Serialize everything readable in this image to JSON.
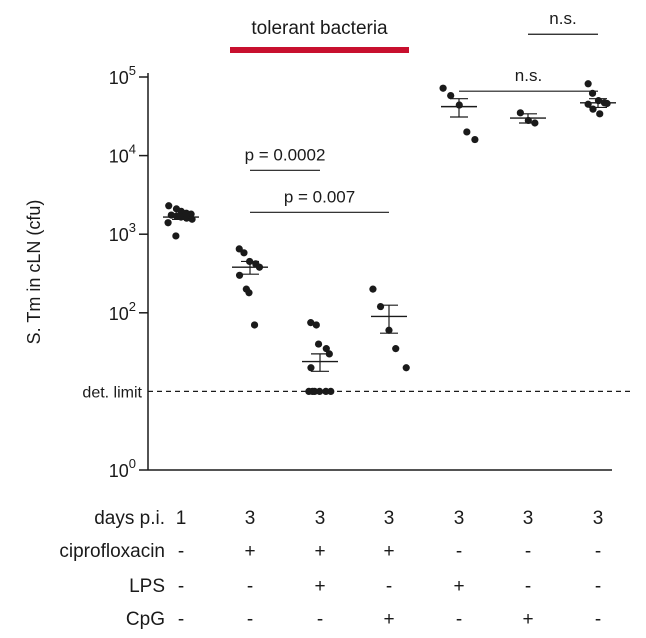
{
  "chart_data": {
    "type": "scatter",
    "ylabel": "S. Tm in cLN (cfu)",
    "yscale": "log",
    "ylim": [
      1,
      100000
    ],
    "yticks": [
      {
        "value": 1,
        "base": "10",
        "exp": "0"
      },
      {
        "value": 100,
        "base": "10",
        "exp": "2"
      },
      {
        "value": 1000,
        "base": "10",
        "exp": "3"
      },
      {
        "value": 10000,
        "base": "10",
        "exp": "4"
      },
      {
        "value": 100000,
        "base": "10",
        "exp": "5"
      }
    ],
    "detection_limit": {
      "value": 10,
      "label": "det. limit"
    },
    "groups": [
      {
        "points": [
          2300,
          2100,
          1950,
          1850,
          1800,
          1750,
          1700,
          1650,
          1600,
          1550,
          1400,
          950
        ],
        "mean": 1650,
        "sem": 110
      },
      {
        "points": [
          650,
          580,
          450,
          420,
          380,
          300,
          200,
          180,
          70
        ],
        "mean": 380,
        "sem": 70
      },
      {
        "points": [
          75,
          70,
          40,
          35,
          30,
          20,
          10,
          10,
          10,
          10,
          10,
          10
        ],
        "mean": 24,
        "sem": 6
      },
      {
        "points": [
          200,
          120,
          60,
          35,
          20
        ],
        "mean": 90,
        "sem": 35
      },
      {
        "points": [
          72000,
          58000,
          44000,
          20000,
          16000
        ],
        "mean": 42000,
        "sem": 11000
      },
      {
        "points": [
          35000,
          28000,
          26000
        ],
        "mean": 30000,
        "sem": 4000
      },
      {
        "points": [
          82000,
          62000,
          50000,
          47000,
          46000,
          45000,
          39000,
          34000
        ],
        "mean": 47000,
        "sem": 6000
      }
    ],
    "annotations": {
      "tolerant": {
        "label": "tolerant bacteria",
        "from_group": 1,
        "to_group": 3,
        "color": "#c8102e"
      },
      "comparisons": [
        {
          "from_group": 1,
          "to_group": 2,
          "label": "p = 0.0002",
          "y": 6500
        },
        {
          "from_group": 1,
          "to_group": 3,
          "label": "p = 0.007",
          "y": 1900
        },
        {
          "from_group": 4,
          "to_group": 6,
          "label": "n.s.",
          "y": 66000
        },
        {
          "from_group": 5,
          "to_group": 6,
          "label": "n.s.",
          "y": 350000
        }
      ]
    },
    "condition_table": {
      "rows": [
        {
          "label": "days p.i.",
          "values": [
            "1",
            "3",
            "3",
            "3",
            "3",
            "3",
            "3"
          ]
        },
        {
          "label": "ciprofloxacin",
          "values": [
            "-",
            "+",
            "+",
            "+",
            "-",
            "-",
            "-"
          ]
        },
        {
          "label": "LPS",
          "values": [
            "-",
            "-",
            "+",
            "-",
            "+",
            "-",
            "-"
          ]
        },
        {
          "label": "CpG",
          "values": [
            "-",
            "-",
            "-",
            "+",
            "-",
            "+",
            "-"
          ]
        }
      ]
    }
  }
}
